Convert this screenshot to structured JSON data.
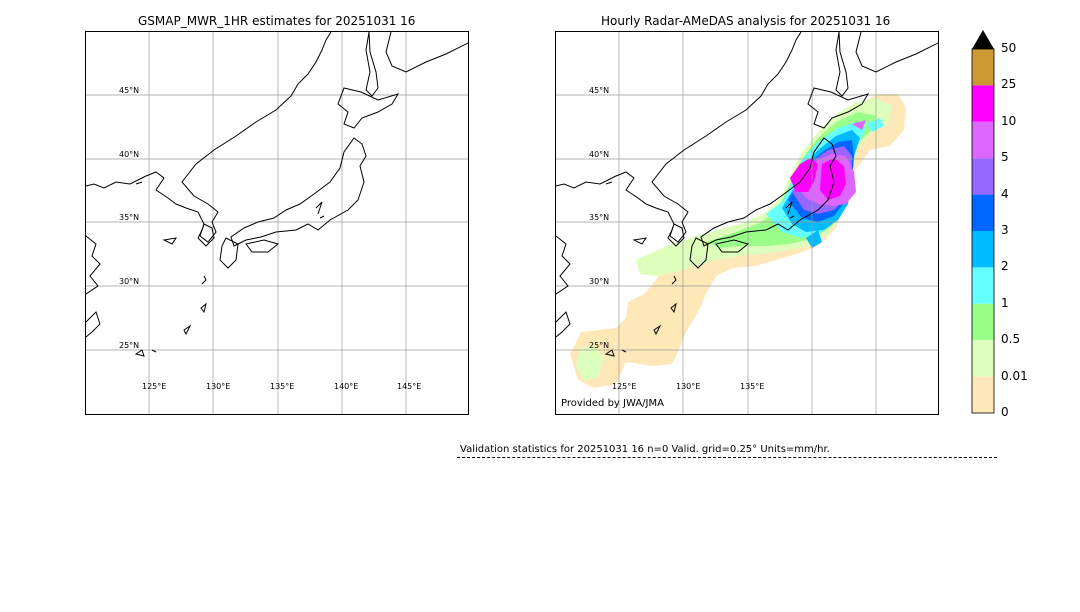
{
  "left_map": {
    "title": "GSMAP_MWR_1HR estimates for 20251031 16",
    "lat_labels": [
      "45°N",
      "40°N",
      "35°N",
      "30°N",
      "25°N"
    ],
    "lon_labels": [
      "125°E",
      "130°E",
      "135°E",
      "140°E",
      "145°E"
    ]
  },
  "right_map": {
    "title": "Hourly Radar-AMeDAS analysis for 20251031 16",
    "lat_labels": [
      "45°N",
      "40°N",
      "35°N",
      "30°N",
      "25°N"
    ],
    "lon_labels": [
      "125°E",
      "130°E",
      "135°E"
    ],
    "credit": "Provided by JWA/JMA"
  },
  "colorbar": {
    "levels": [
      "50",
      "25",
      "10",
      "5",
      "4",
      "3",
      "2",
      "1",
      "0.5",
      "0.01",
      "0"
    ],
    "colors": [
      "#cc9933",
      "#ff00ff",
      "#dd66ff",
      "#9966ff",
      "#0066ff",
      "#00bbff",
      "#66ffff",
      "#99ff88",
      "#ddffbb",
      "#ffe8b8"
    ],
    "extend_color": "#000000"
  },
  "stats": {
    "text": "Validation statistics for 20251031 16  n=0 Valid. grid=0.25° Units=mm/hr."
  }
}
